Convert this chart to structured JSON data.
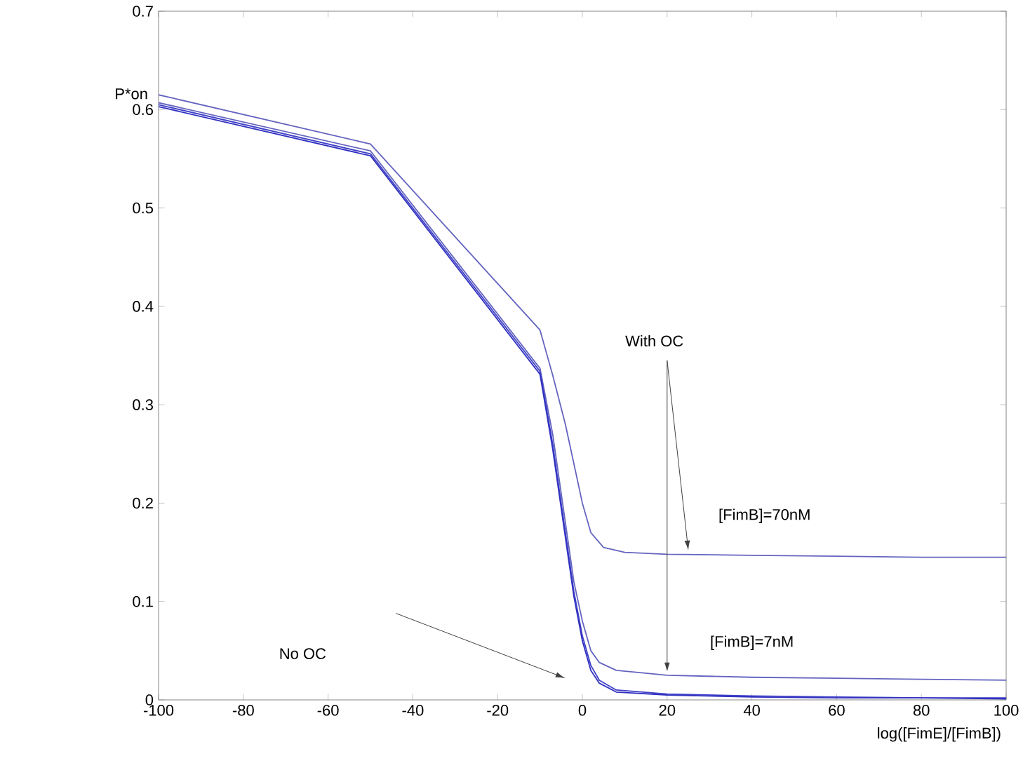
{
  "chart_data": {
    "type": "line",
    "xlabel": "log([FimE]/[FimB])",
    "ylabel": "P*on",
    "xlim": [
      -100,
      100
    ],
    "ylim": [
      0,
      0.7
    ],
    "xticks": [
      -100,
      -80,
      -60,
      -40,
      -20,
      0,
      20,
      40,
      60,
      80,
      100
    ],
    "yticks": [
      0,
      0.1,
      0.2,
      0.3,
      0.4,
      0.5,
      0.6,
      0.7
    ],
    "grid": false,
    "marker": "none",
    "line_style": "solid",
    "annotations": [
      {
        "text": "With OC",
        "x": 25,
        "y": 0.152
      },
      "[FimB]=70nM",
      "[FimB]=7nM",
      "No OC"
    ],
    "series": [
      {
        "color": "#6464c0",
        "x": [
          -100,
          -50,
          -10,
          -7,
          -4,
          -2,
          0,
          2,
          5,
          10,
          20,
          40,
          60,
          80,
          100
        ],
        "values": [
          0.615,
          0.565,
          0.376,
          0.33,
          0.28,
          0.24,
          0.2,
          0.17,
          0.155,
          0.15,
          0.148,
          0.147,
          0.146,
          0.145,
          0.145
        ]
      },
      {
        "color": "#6464c0",
        "x": [
          -100,
          -50,
          -10,
          -7,
          -4,
          -2,
          0,
          2,
          4,
          8,
          20,
          40,
          60,
          80,
          100
        ],
        "values": [
          0.607,
          0.558,
          0.337,
          0.27,
          0.18,
          0.12,
          0.08,
          0.05,
          0.038,
          0.03,
          0.025,
          0.023,
          0.022,
          0.021,
          0.02
        ]
      },
      {
        "color": "#4040c8",
        "x": [
          -100,
          -50,
          -10,
          -7,
          -4,
          -2,
          0,
          2,
          4,
          8,
          20,
          40,
          60,
          80,
          100
        ],
        "values": [
          0.605,
          0.555,
          0.334,
          0.26,
          0.17,
          0.11,
          0.065,
          0.035,
          0.02,
          0.01,
          0.006,
          0.004,
          0.003,
          0.002,
          0.002
        ]
      },
      {
        "color": "#3030c0",
        "x": [
          -100,
          -50,
          -10,
          -7,
          -4,
          -2,
          0,
          2,
          4,
          8,
          20,
          40,
          60,
          80,
          100
        ],
        "values": [
          0.603,
          0.553,
          0.331,
          0.255,
          0.165,
          0.105,
          0.06,
          0.03,
          0.017,
          0.008,
          0.005,
          0.003,
          0.002,
          0.002,
          0.001
        ]
      }
    ]
  }
}
